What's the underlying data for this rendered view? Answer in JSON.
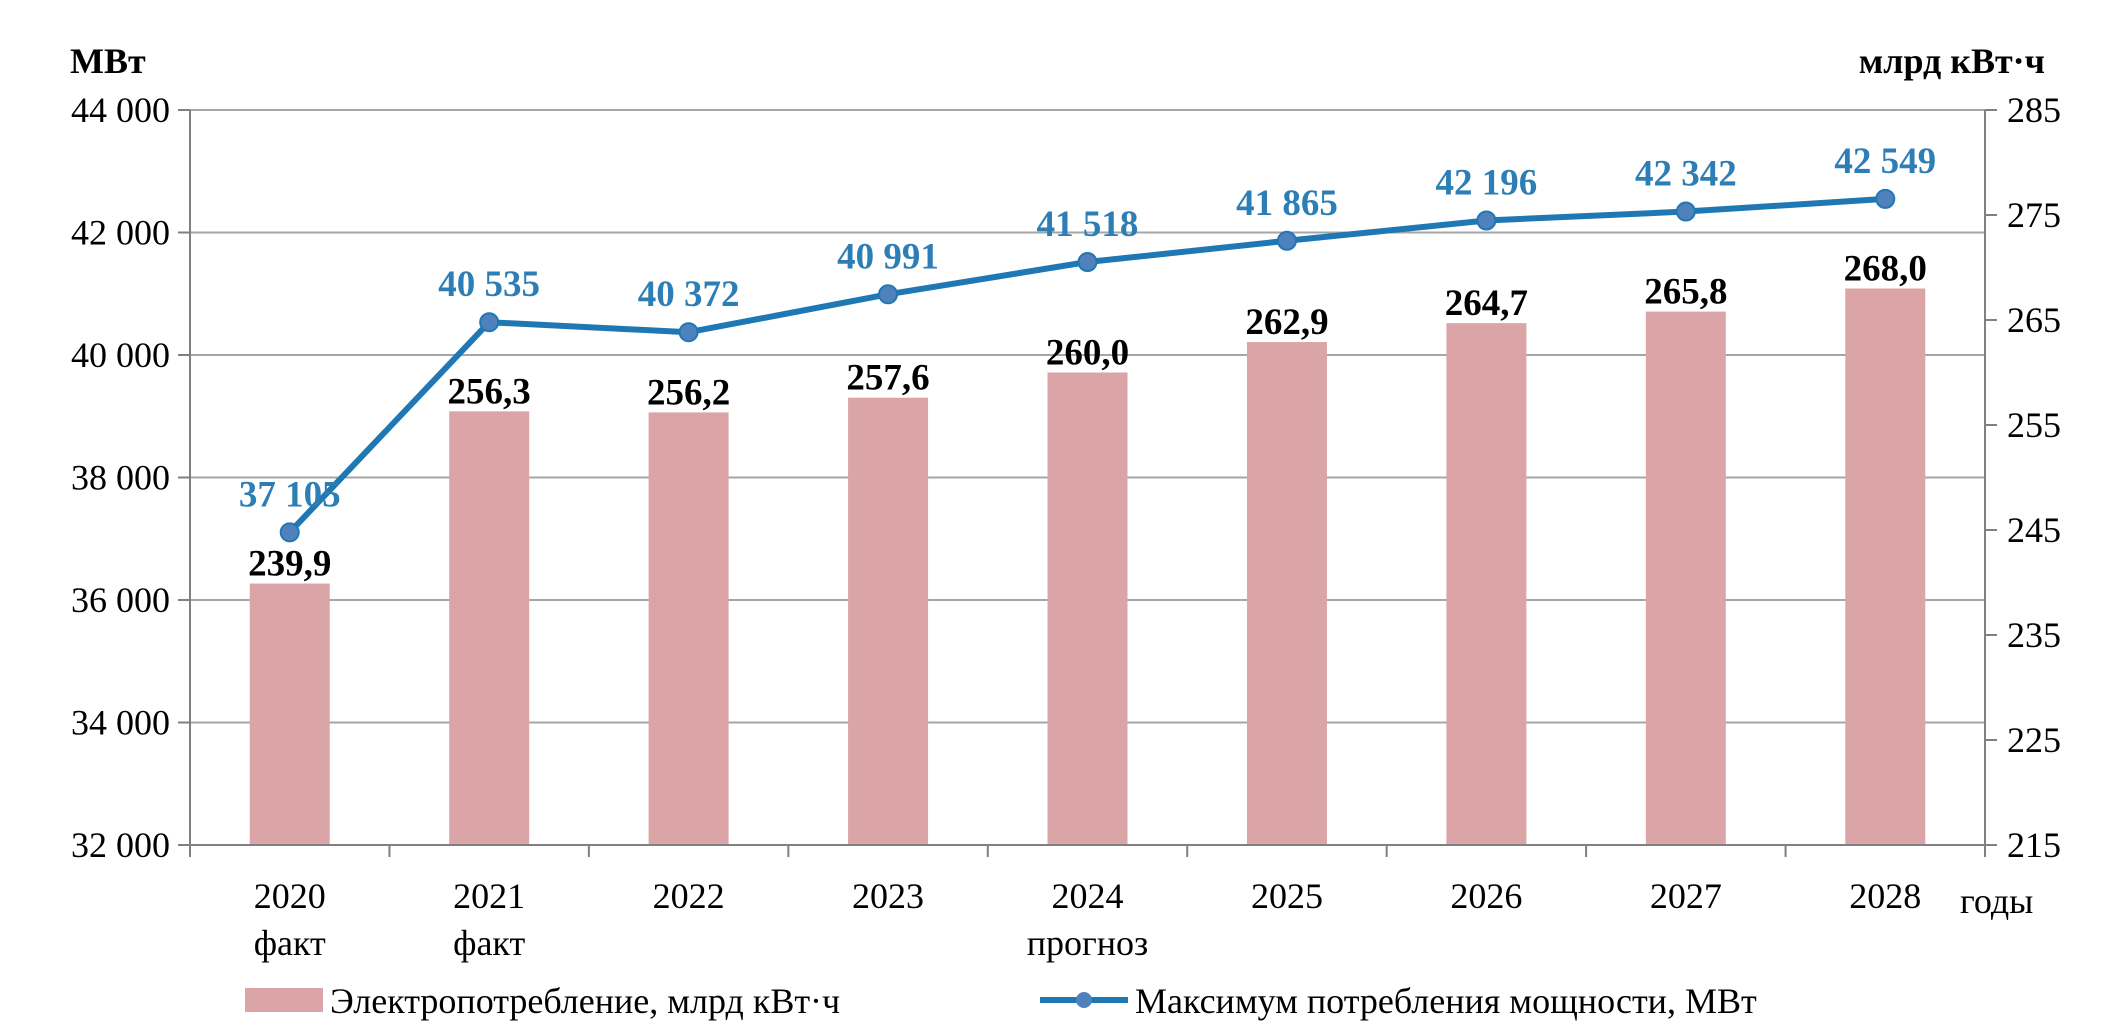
{
  "chart_data": {
    "type": "bar",
    "categories": [
      "2020",
      "2021",
      "2022",
      "2023",
      "2024",
      "2025",
      "2026",
      "2027",
      "2028"
    ],
    "category_sublabels": [
      "факт",
      "факт",
      "",
      "",
      "прогноз",
      "",
      "",
      "",
      ""
    ],
    "x_unit_label": "годы",
    "left_axis": {
      "unit_label": "МВт",
      "ylim": [
        32000,
        44000
      ],
      "ticks": [
        32000,
        34000,
        36000,
        38000,
        40000,
        42000,
        44000
      ],
      "tick_labels": [
        "32 000",
        "34 000",
        "36 000",
        "38 000",
        "40 000",
        "42 000",
        "44 000"
      ]
    },
    "right_axis": {
      "unit_label": "млрд кВт·ч",
      "ylim": [
        215,
        285
      ],
      "ticks": [
        215,
        225,
        235,
        245,
        255,
        265,
        275,
        285
      ],
      "tick_labels": [
        "215",
        "225",
        "235",
        "245",
        "255",
        "265",
        "275",
        "285"
      ]
    },
    "series": [
      {
        "name": "Электропотребление, млрд кВт·ч",
        "kind": "bar",
        "axis": "right",
        "color": "#dba5a7",
        "values": [
          239.9,
          256.3,
          256.2,
          257.6,
          260.0,
          262.9,
          264.7,
          265.8,
          268.0
        ],
        "labels": [
          "239,9",
          "256,3",
          "256,2",
          "257,6",
          "260,0",
          "262,9",
          "264,7",
          "265,8",
          "268,0"
        ]
      },
      {
        "name": "Максимум потребления мощности, МВт",
        "kind": "line",
        "axis": "left",
        "color": "#1f78b4",
        "label_color": "#2e7eb6",
        "marker_color": "#4f81bd",
        "values": [
          37105,
          40535,
          40372,
          40991,
          41518,
          41865,
          42196,
          42342,
          42549
        ],
        "labels": [
          "37 105",
          "40 535",
          "40 372",
          "40 991",
          "41 518",
          "41 865",
          "42 196",
          "42 342",
          "42 549"
        ]
      }
    ],
    "grid": "horizontal",
    "legend_position": "bottom"
  }
}
